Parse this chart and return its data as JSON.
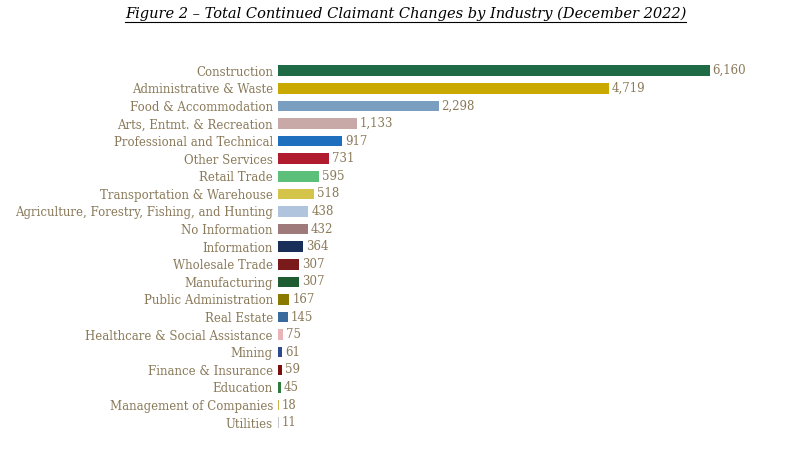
{
  "title": "Figure 2 – Total Continued Claimant Changes by Industry (December 2022)",
  "categories": [
    "Construction",
    "Administrative & Waste",
    "Food & Accommodation",
    "Arts, Entmt. & Recreation",
    "Professional and Technical",
    "Other Services",
    "Retail Trade",
    "Transportation & Warehouse",
    "Agriculture, Forestry, Fishing, and Hunting",
    "No Information",
    "Information",
    "Wholesale Trade",
    "Manufacturing",
    "Public Administration",
    "Real Estate",
    "Healthcare & Social Assistance",
    "Mining",
    "Finance & Insurance",
    "Education",
    "Management of Companies",
    "Utilities"
  ],
  "values": [
    6160,
    4719,
    2298,
    1133,
    917,
    731,
    595,
    518,
    438,
    432,
    364,
    307,
    307,
    167,
    145,
    75,
    61,
    59,
    45,
    18,
    11
  ],
  "colors": [
    "#1f6b45",
    "#c9a800",
    "#7a9ebf",
    "#c9a8a8",
    "#1f6fbf",
    "#b01c2e",
    "#5cbf7a",
    "#d4c44a",
    "#b0c4de",
    "#9e7a7a",
    "#1a2e5a",
    "#7a1a1a",
    "#1f5c32",
    "#8a7a00",
    "#3a6a9e",
    "#e8b4b8",
    "#2e4a8a",
    "#7a0e0e",
    "#2e7a3a",
    "#c8b44a",
    "#c8c8c8"
  ],
  "value_labels": [
    "6,160",
    "4,719",
    "2,298",
    "1,133",
    "917",
    "731",
    "595",
    "518",
    "438",
    "432",
    "364",
    "307",
    "307",
    "167",
    "145",
    "75",
    "61",
    "59",
    "45",
    "18",
    "11"
  ],
  "label_color": "#8a7a5a",
  "title_fontsize": 10.5,
  "tick_fontsize": 8.5,
  "value_fontsize": 8.5,
  "background_color": "#ffffff"
}
